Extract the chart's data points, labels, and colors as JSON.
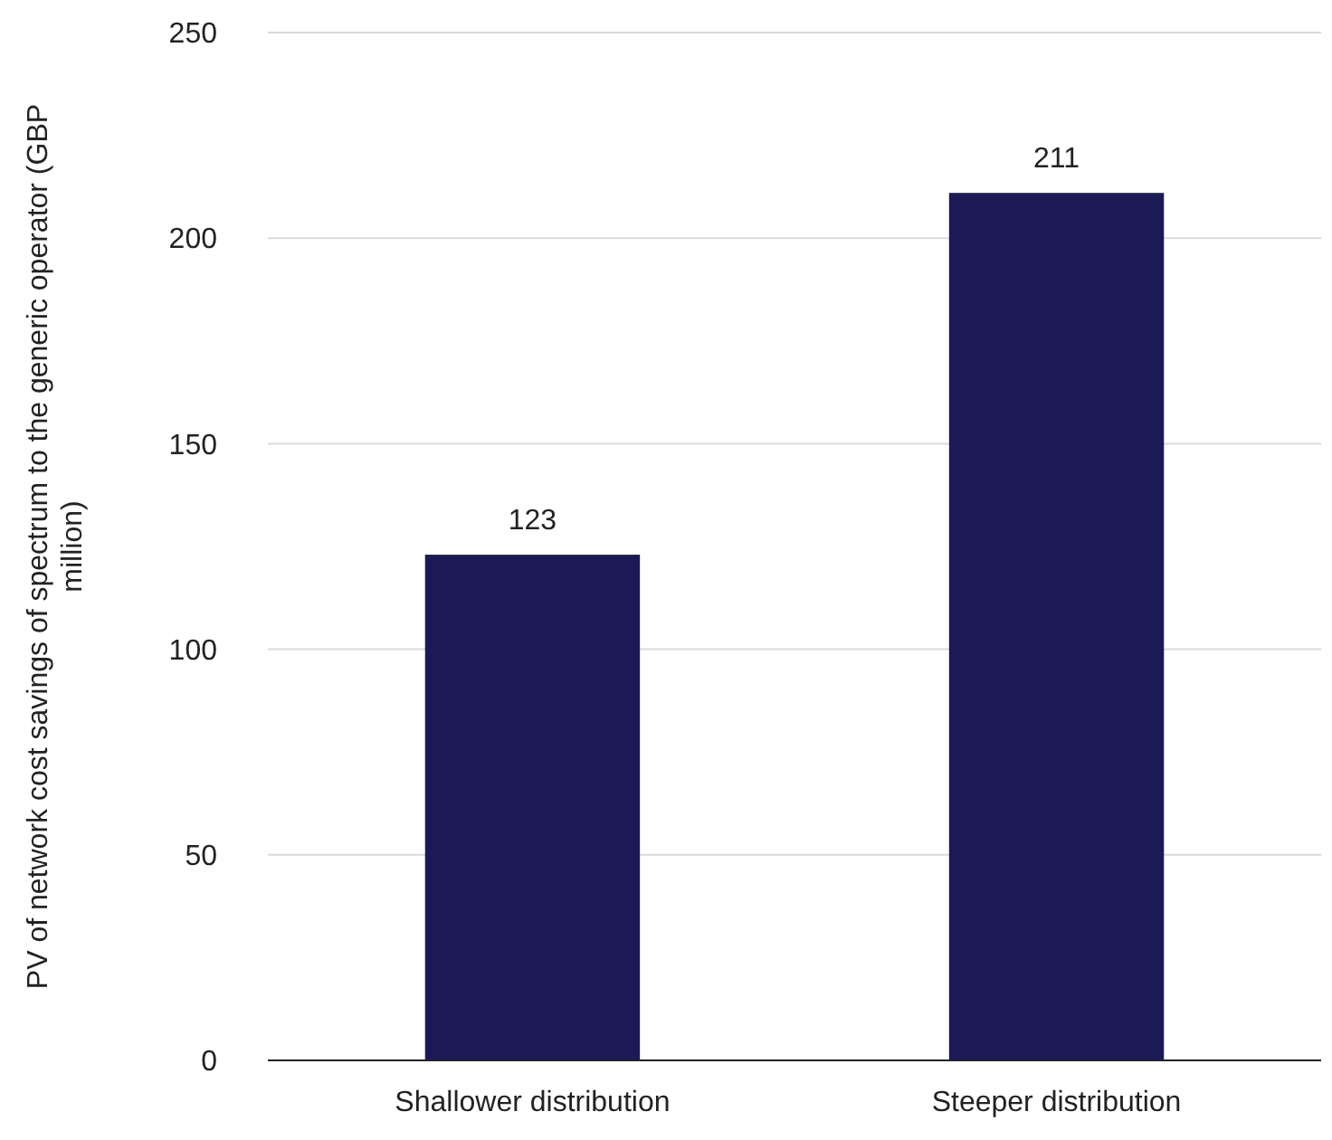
{
  "chart_data": {
    "type": "bar",
    "categories": [
      "Shallower distribution",
      "Steeper distribution"
    ],
    "values": [
      123,
      211
    ],
    "color": "#1c1a55",
    "ylabel": "PV of network cost savings of spectrum to the generic operator (GBP million)",
    "ylim": [
      0,
      250
    ],
    "yticks": [
      0,
      50,
      100,
      150,
      200,
      250
    ],
    "grid": "y",
    "data_labels": true
  }
}
